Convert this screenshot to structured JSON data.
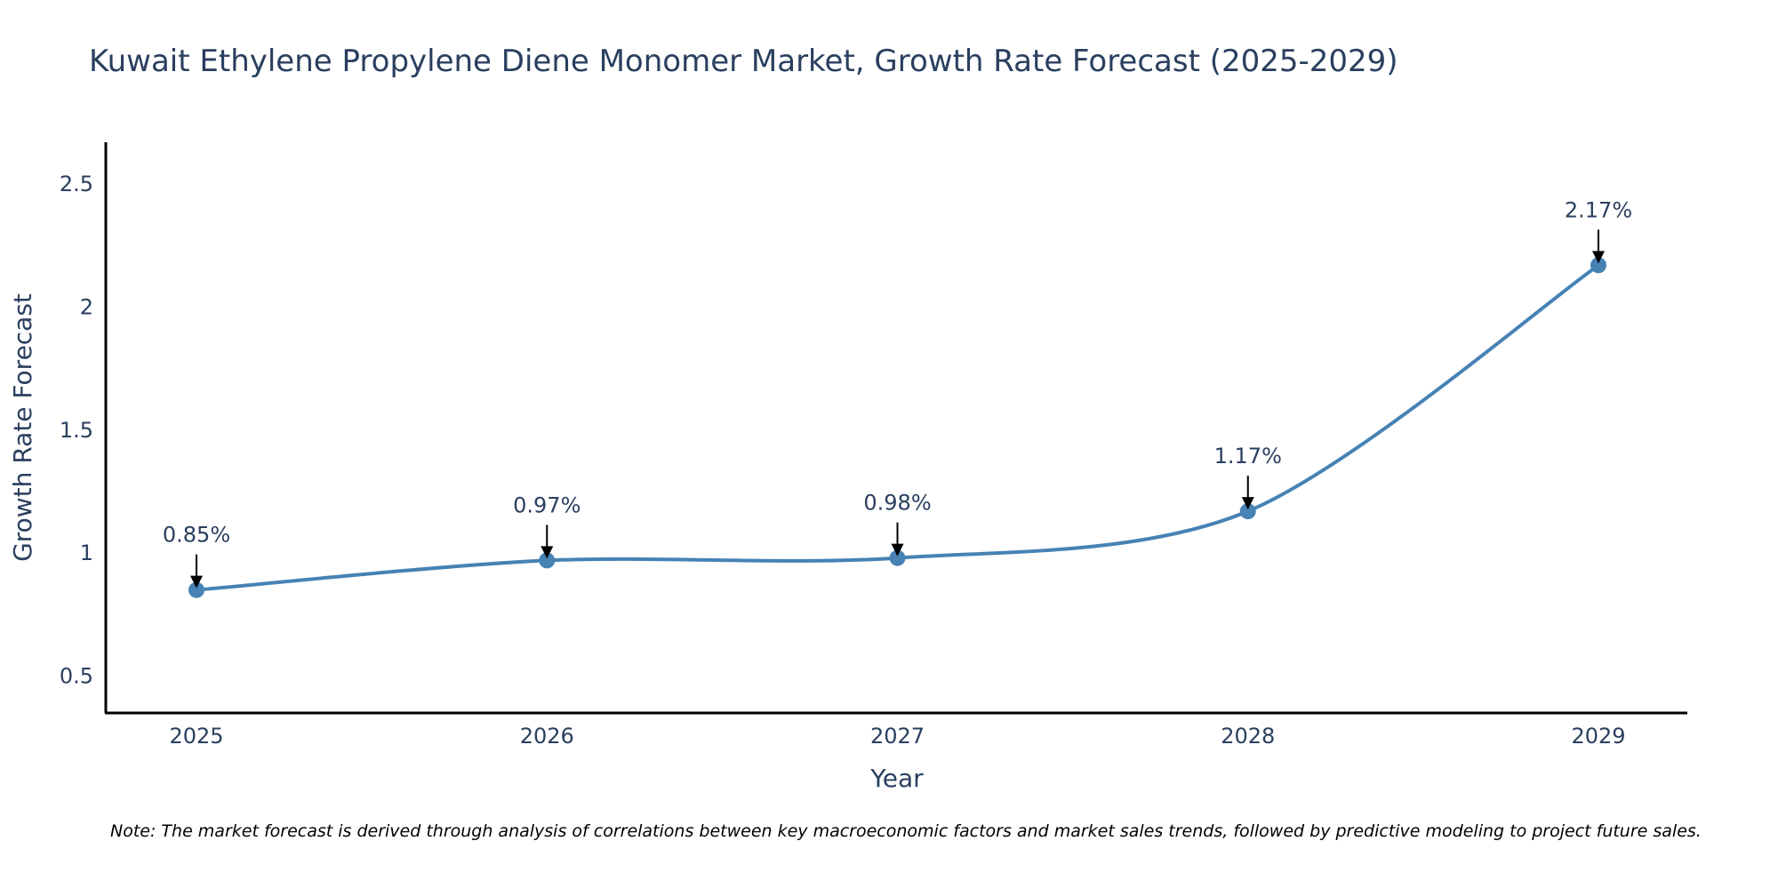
{
  "chart_data": {
    "type": "line",
    "title": "Kuwait Ethylene Propylene Diene Monomer Market, Growth Rate Forecast (2025-2029)",
    "xlabel": "Year",
    "ylabel": "Growth Rate Forecast",
    "categories": [
      "2025",
      "2026",
      "2027",
      "2028",
      "2029"
    ],
    "values": [
      0.85,
      0.97,
      0.98,
      1.17,
      2.17
    ],
    "data_labels": [
      "0.85%",
      "0.97%",
      "0.98%",
      "1.17%",
      "2.17%"
    ],
    "y_ticks": [
      0.5,
      1,
      1.5,
      2,
      2.5
    ],
    "y_tick_labels": [
      "0.5",
      "1",
      "1.5",
      "2",
      "2.5"
    ],
    "ylim": [
      0.35,
      2.67
    ],
    "grid": false,
    "line_color": "#4682b4",
    "note": "Note: The market forecast is derived through analysis of correlations between key macroeconomic factors and market sales trends, followed by predictive modeling to project future sales."
  }
}
